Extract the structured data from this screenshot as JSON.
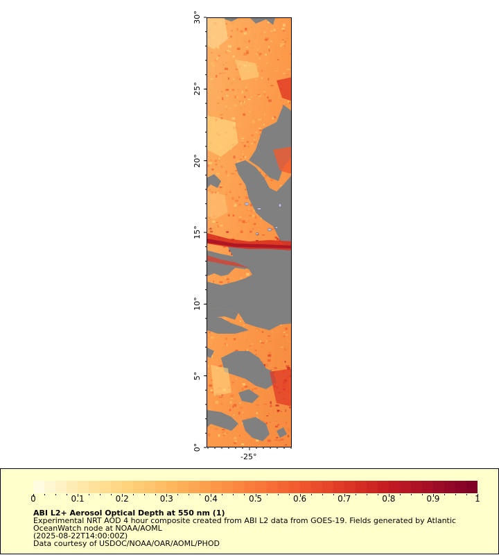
{
  "map": {
    "y_axis_labels": [
      "30°",
      "25°",
      "20°",
      "15°",
      "10°",
      "5°",
      "0°"
    ],
    "x_axis_labels": [
      "-25°"
    ],
    "lat_range": [
      0,
      30
    ],
    "lon_center": -25,
    "no_data_color": "#808080",
    "land_color": "#bdbdd6"
  },
  "legend": {
    "colorbar_ticks": [
      "0",
      "0.1",
      "0.2",
      "0.3",
      "0.4",
      "0.5",
      "0.6",
      "0.7",
      "0.8",
      "0.9",
      "1"
    ],
    "colorbar_range": [
      0,
      1
    ],
    "colorbar_colors": [
      "#fffbe0",
      "#fee8a8",
      "#fed47e",
      "#fdb95f",
      "#fc9a4a",
      "#f97a3a",
      "#f05a2e",
      "#e03a26",
      "#c61d22",
      "#a50f26",
      "#800026"
    ],
    "title": "ABI L2+ Aerosol Optical Depth at 550 nm (1)",
    "line1": "Experimental NRT AOD 4 hour composite created from ABI L2 data from GOES-19. Fields generated by Atlantic",
    "line2": "OceanWatch node at NOAA/AOML",
    "line3": "(2025-08-22T14:00:00Z)",
    "line4": "Data courtesy of USDOC/NOAA/OAR/AOML/PHOD"
  }
}
